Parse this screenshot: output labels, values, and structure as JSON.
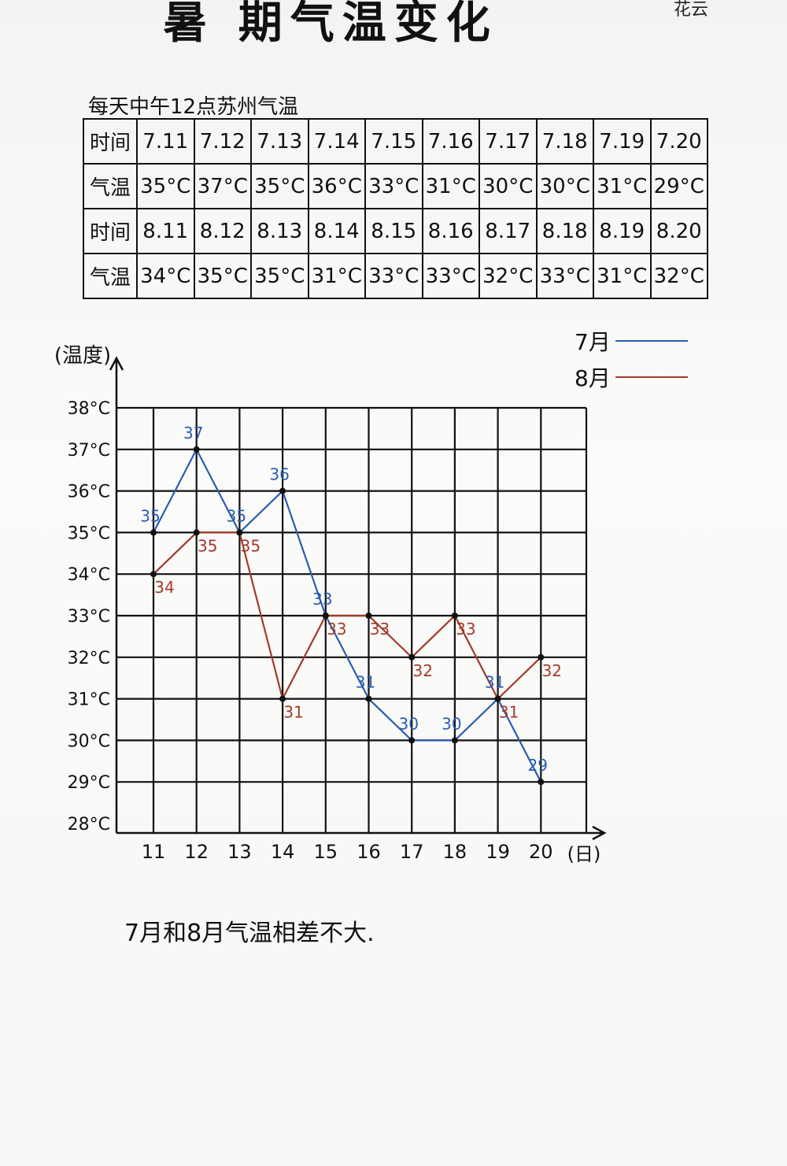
{
  "page": {
    "title": "暑 期气温变化",
    "corner_note": "花云",
    "caption": "每天中午12点苏州气温",
    "conclusion": "7月和8月气温相差不大."
  },
  "table": {
    "rows": [
      {
        "head": "时间",
        "cells": [
          "7.11",
          "7.12",
          "7.13",
          "7.14",
          "7.15",
          "7.16",
          "7.17",
          "7.18",
          "7.19",
          "7.20"
        ]
      },
      {
        "head": "气温",
        "cells": [
          "35°C",
          "37°C",
          "35°C",
          "36°C",
          "33°C",
          "31°C",
          "30°C",
          "30°C",
          "31°C",
          "29°C"
        ]
      },
      {
        "head": "时间",
        "cells": [
          "8.11",
          "8.12",
          "8.13",
          "8.14",
          "8.15",
          "8.16",
          "8.17",
          "8.18",
          "8.19",
          "8.20"
        ]
      },
      {
        "head": "气温",
        "cells": [
          "34°C",
          "35°C",
          "35°C",
          "31°C",
          "33°C",
          "33°C",
          "32°C",
          "33°C",
          "31°C",
          "32°C"
        ]
      }
    ]
  },
  "legend": [
    {
      "label": "7月",
      "color": "#2a5db0"
    },
    {
      "label": "8月",
      "color": "#a33a2a"
    }
  ],
  "chart_data": {
    "type": "line",
    "ylabel": "(温度)",
    "xlabel": "(日)",
    "x": [
      "11",
      "12",
      "13",
      "14",
      "15",
      "16",
      "17",
      "18",
      "19",
      "20"
    ],
    "y_ticks": [
      "28°C",
      "29°C",
      "30°C",
      "31°C",
      "32°C",
      "33°C",
      "34°C",
      "35°C",
      "36°C",
      "37°C",
      "38°C"
    ],
    "ylim": [
      28,
      38
    ],
    "grid": true,
    "legend_position": "top-right",
    "series": [
      {
        "name": "7月",
        "color": "#2a5db0",
        "values": [
          35,
          37,
          35,
          36,
          33,
          31,
          30,
          30,
          31,
          29
        ]
      },
      {
        "name": "8月",
        "color": "#a33a2a",
        "values": [
          34,
          35,
          35,
          31,
          33,
          33,
          32,
          33,
          31,
          32
        ]
      }
    ]
  }
}
